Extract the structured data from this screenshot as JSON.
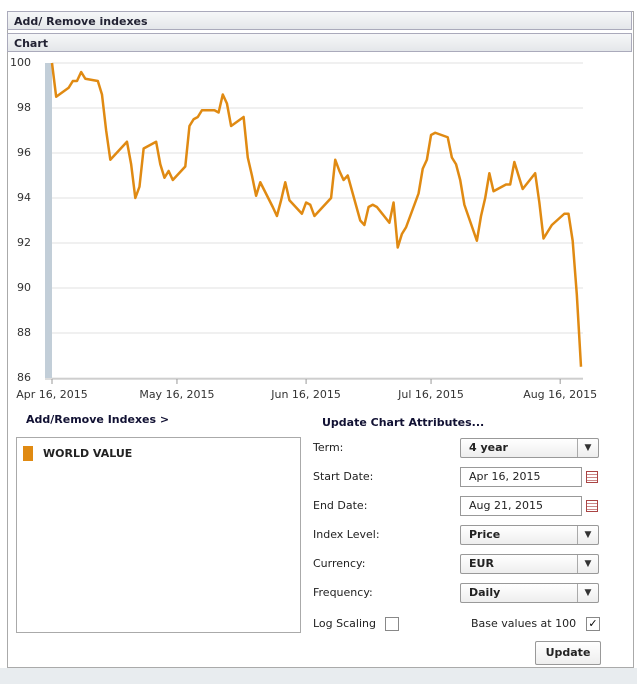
{
  "header": {
    "title": "Add/ Remove indexes"
  },
  "chart_panel": {
    "title": "Chart"
  },
  "chart_data": {
    "type": "line",
    "x": [
      "2015-04-16",
      "2015-04-17",
      "2015-04-20",
      "2015-04-21",
      "2015-04-22",
      "2015-04-23",
      "2015-04-24",
      "2015-04-27",
      "2015-04-28",
      "2015-04-29",
      "2015-04-30",
      "2015-05-04",
      "2015-05-05",
      "2015-05-06",
      "2015-05-07",
      "2015-05-08",
      "2015-05-11",
      "2015-05-12",
      "2015-05-13",
      "2015-05-14",
      "2015-05-15",
      "2015-05-18",
      "2015-05-19",
      "2015-05-20",
      "2015-05-21",
      "2015-05-22",
      "2015-05-25",
      "2015-05-26",
      "2015-05-27",
      "2015-05-28",
      "2015-05-29",
      "2015-06-01",
      "2015-06-02",
      "2015-06-03",
      "2015-06-04",
      "2015-06-05",
      "2015-06-08",
      "2015-06-09",
      "2015-06-10",
      "2015-06-11",
      "2015-06-12",
      "2015-06-15",
      "2015-06-16",
      "2015-06-17",
      "2015-06-18",
      "2015-06-19",
      "2015-06-22",
      "2015-06-23",
      "2015-06-24",
      "2015-06-25",
      "2015-06-26",
      "2015-06-29",
      "2015-06-30",
      "2015-07-01",
      "2015-07-02",
      "2015-07-03",
      "2015-07-06",
      "2015-07-07",
      "2015-07-08",
      "2015-07-09",
      "2015-07-10",
      "2015-07-13",
      "2015-07-14",
      "2015-07-15",
      "2015-07-16",
      "2015-07-17",
      "2015-07-20",
      "2015-07-21",
      "2015-07-22",
      "2015-07-23",
      "2015-07-24",
      "2015-07-27",
      "2015-07-28",
      "2015-07-29",
      "2015-07-30",
      "2015-07-31",
      "2015-08-03",
      "2015-08-04",
      "2015-08-05",
      "2015-08-06",
      "2015-08-07",
      "2015-08-10",
      "2015-08-11",
      "2015-08-12",
      "2015-08-13",
      "2015-08-14",
      "2015-08-17",
      "2015-08-18",
      "2015-08-19",
      "2015-08-20",
      "2015-08-21"
    ],
    "series": [
      {
        "name": "WORLD VALUE",
        "color": "#e08a12",
        "values": [
          100,
          98.5,
          98.9,
          99.2,
          99.2,
          99.6,
          99.3,
          99.2,
          98.6,
          97.0,
          95.7,
          96.5,
          95.5,
          94.0,
          94.5,
          96.2,
          96.5,
          95.5,
          94.9,
          95.2,
          94.8,
          95.4,
          97.2,
          97.5,
          97.6,
          97.9,
          97.9,
          97.8,
          98.6,
          98.2,
          97.2,
          97.6,
          95.8,
          95.0,
          94.1,
          94.7,
          93.6,
          93.2,
          93.9,
          94.7,
          93.9,
          93.3,
          93.8,
          93.7,
          93.2,
          93.4,
          94.0,
          95.7,
          95.2,
          94.8,
          95.0,
          93.0,
          92.8,
          93.6,
          93.7,
          93.6,
          92.9,
          93.8,
          91.8,
          92.4,
          92.7,
          94.2,
          95.3,
          95.7,
          96.8,
          96.9,
          96.7,
          95.8,
          95.5,
          94.8,
          93.7,
          92.1,
          93.2,
          94.0,
          95.1,
          94.3,
          94.6,
          94.6,
          95.6,
          95.0,
          94.4,
          95.1,
          93.8,
          92.2,
          92.5,
          92.8,
          93.3,
          93.3,
          92.1,
          89.7,
          86.5
        ]
      }
    ],
    "xlim": [
      "2015-04-16",
      "2015-08-21"
    ],
    "xticks": [
      {
        "value": "2015-04-16",
        "label": "Apr 16, 2015"
      },
      {
        "value": "2015-05-16",
        "label": "May 16, 2015"
      },
      {
        "value": "2015-06-16",
        "label": "Jun 16, 2015"
      },
      {
        "value": "2015-07-16",
        "label": "Jul 16, 2015"
      },
      {
        "value": "2015-08-16",
        "label": "Aug 16, 2015"
      }
    ],
    "ylim": [
      86,
      100
    ],
    "yticks": [
      86,
      88,
      90,
      92,
      94,
      96,
      98,
      100
    ],
    "grid": true
  },
  "indexes_link": "Add/Remove Indexes >",
  "form": {
    "title": "Update Chart Attributes...",
    "fields": [
      {
        "label": "Term:",
        "value": "4 year",
        "kind": "select"
      },
      {
        "label": "Start Date:",
        "value": "Apr 16, 2015",
        "kind": "date"
      },
      {
        "label": "End Date:",
        "value": "Aug 21, 2015",
        "kind": "date"
      },
      {
        "label": "Index Level:",
        "value": "Price",
        "kind": "select"
      },
      {
        "label": "Currency:",
        "value": "EUR",
        "kind": "select"
      },
      {
        "label": "Frequency:",
        "value": "Daily",
        "kind": "select"
      }
    ],
    "log_scaling": {
      "label": "Log Scaling",
      "checked": false
    },
    "base_values": {
      "label": "Base values at 100",
      "checked": true
    },
    "button": "Update"
  }
}
